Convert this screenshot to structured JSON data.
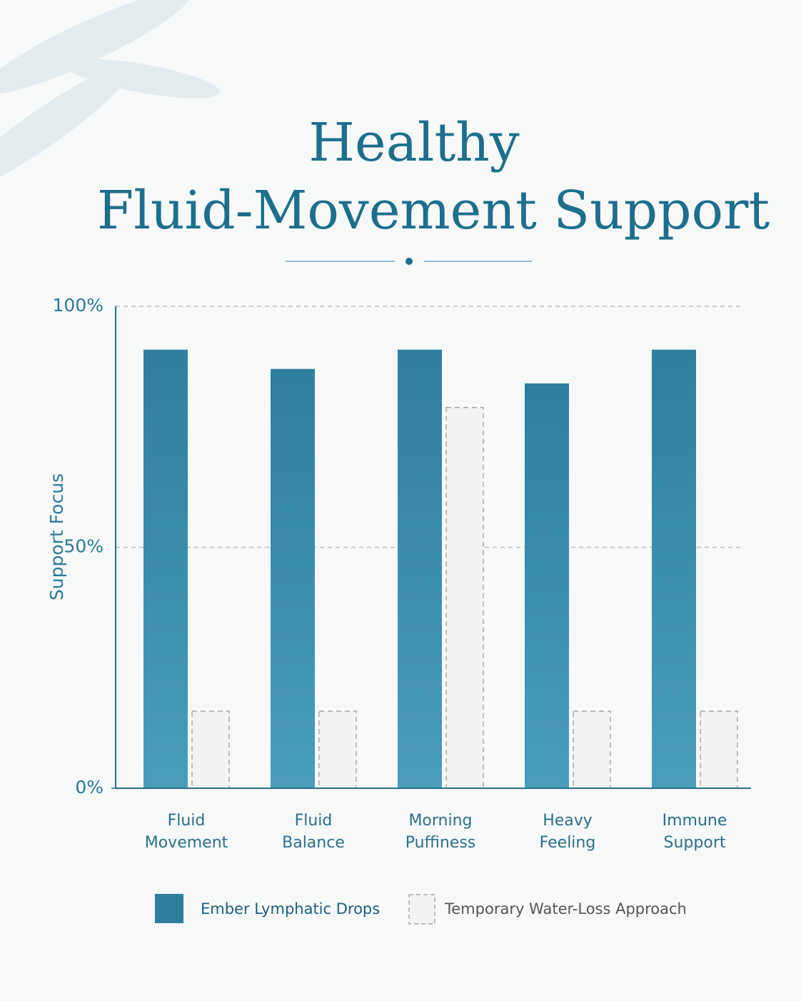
{
  "chart_data": {
    "type": "bar",
    "title": [
      "Healthy",
      "Fluid-Movement Support"
    ],
    "y_label": "Support Focus",
    "categories": [
      [
        "Fluid",
        "Movement"
      ],
      [
        "Fluid",
        "Balance"
      ],
      [
        "Morning",
        "Puffiness"
      ],
      [
        "Heavy",
        "Feeling"
      ],
      [
        "Immune",
        "Support"
      ]
    ],
    "series": [
      {
        "name": "Ember Lymphatic Drops",
        "color": "#2e7f9e",
        "values": [
          91,
          87,
          91,
          84,
          91
        ]
      },
      {
        "name": "Temporary Water-Loss Approach",
        "color": "#f2f2f2",
        "values": [
          16,
          16,
          79,
          16,
          16
        ]
      }
    ],
    "ylim": [
      0,
      100
    ],
    "yticks": [
      {
        "value": 0,
        "label": "0%"
      },
      {
        "value": 50,
        "label": "50%"
      },
      {
        "value": 100,
        "label": "100%"
      }
    ],
    "grid": true
  }
}
